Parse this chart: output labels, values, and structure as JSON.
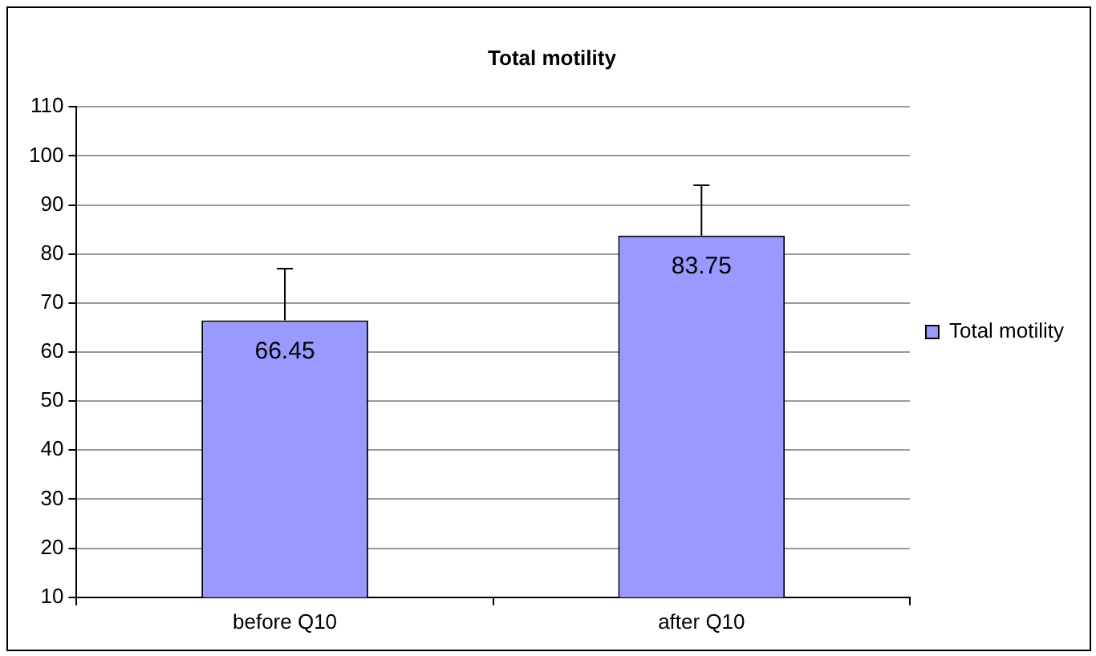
{
  "chart_data": {
    "type": "bar",
    "title": "Total motility",
    "categories": [
      "before Q10",
      "after Q10"
    ],
    "series": [
      {
        "name": "Total motility",
        "color": "#9999ff",
        "values": [
          66.45,
          83.75
        ],
        "errors": [
          [
            66.45,
            77
          ],
          [
            83.75,
            94
          ]
        ]
      }
    ],
    "ylim": [
      10,
      110
    ],
    "yticks": [
      10,
      20,
      30,
      40,
      50,
      60,
      70,
      80,
      90,
      100,
      110
    ],
    "grid": "y",
    "legend": "right",
    "data_labels": true
  }
}
